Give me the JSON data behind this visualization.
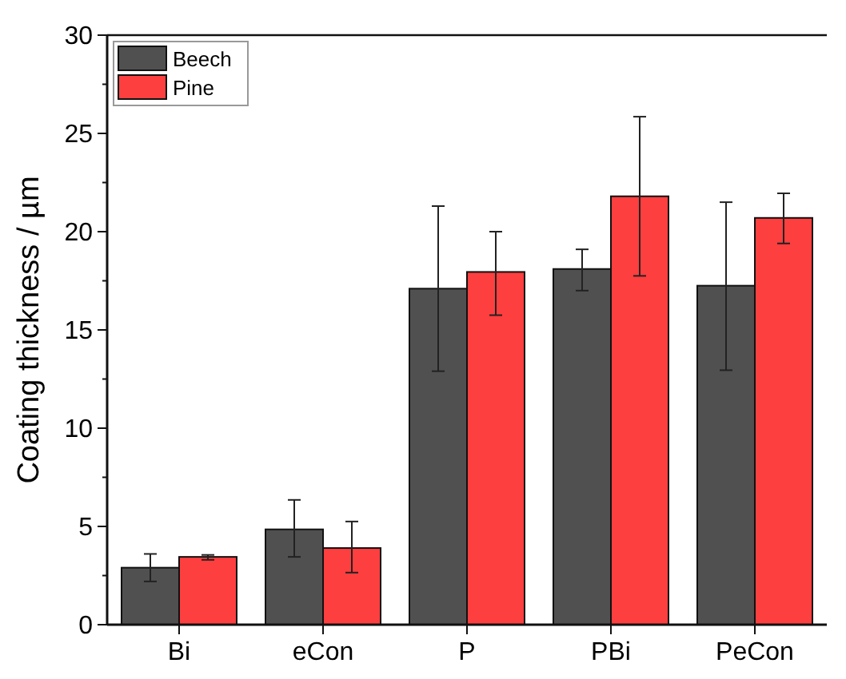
{
  "chart_data": {
    "type": "bar",
    "ylabel": "Coating thickness  /  µm",
    "categories": [
      "Bi",
      "eCon",
      "P",
      "PBi",
      "PeCon"
    ],
    "series": [
      {
        "name": "Beech",
        "color": "#505050",
        "values": [
          2.9,
          4.85,
          17.1,
          18.1,
          17.25
        ],
        "errors": [
          [
            2.2,
            3.6
          ],
          [
            3.45,
            6.35
          ],
          [
            12.9,
            21.3
          ],
          [
            17.0,
            19.1
          ],
          [
            12.95,
            21.5
          ]
        ]
      },
      {
        "name": "Pine",
        "color": "#fe3f3f",
        "values": [
          3.45,
          3.9,
          17.95,
          21.8,
          20.7
        ],
        "errors": [
          [
            3.3,
            3.55
          ],
          [
            2.65,
            5.25
          ],
          [
            15.75,
            20.0
          ],
          [
            17.75,
            25.85
          ],
          [
            19.4,
            21.95
          ]
        ]
      }
    ],
    "ylim": [
      0,
      30
    ],
    "yticks": [
      0,
      5,
      10,
      15,
      20,
      25,
      30
    ],
    "legend": "top left"
  }
}
